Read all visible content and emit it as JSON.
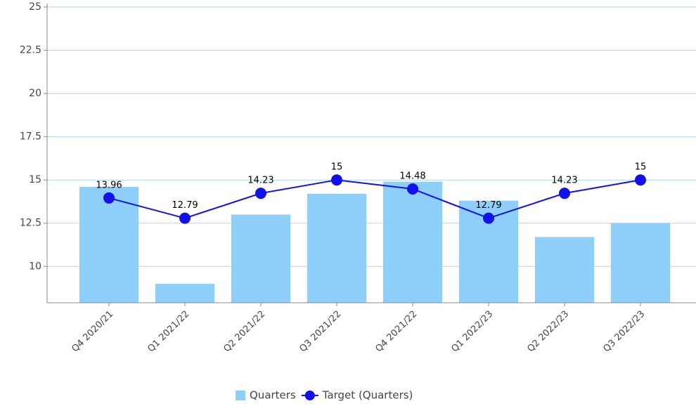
{
  "chart_data": {
    "type": "bar_line",
    "categories": [
      "Q4 2020/21",
      "Q1 2021/22",
      "Q2 2021/22",
      "Q3 2021/22",
      "Q4 2021/22",
      "Q1 2022/23",
      "Q2 2022/23",
      "Q3 2022/23"
    ],
    "series": [
      {
        "name": "Quarters",
        "type": "bar",
        "color": "#8ecffa",
        "values": [
          14.6,
          9.0,
          13.0,
          14.2,
          14.9,
          13.8,
          11.7,
          12.5
        ]
      },
      {
        "name": "Target (Quarters)",
        "type": "line",
        "color": "#1111ee",
        "values": [
          13.96,
          12.79,
          14.23,
          15,
          14.48,
          12.79,
          14.23,
          15
        ]
      }
    ],
    "ylim": [
      7.9,
      25
    ],
    "yticks": [
      10,
      12.5,
      15,
      17.5,
      20,
      22.5,
      25
    ],
    "grid": true,
    "legend": "bottom"
  }
}
